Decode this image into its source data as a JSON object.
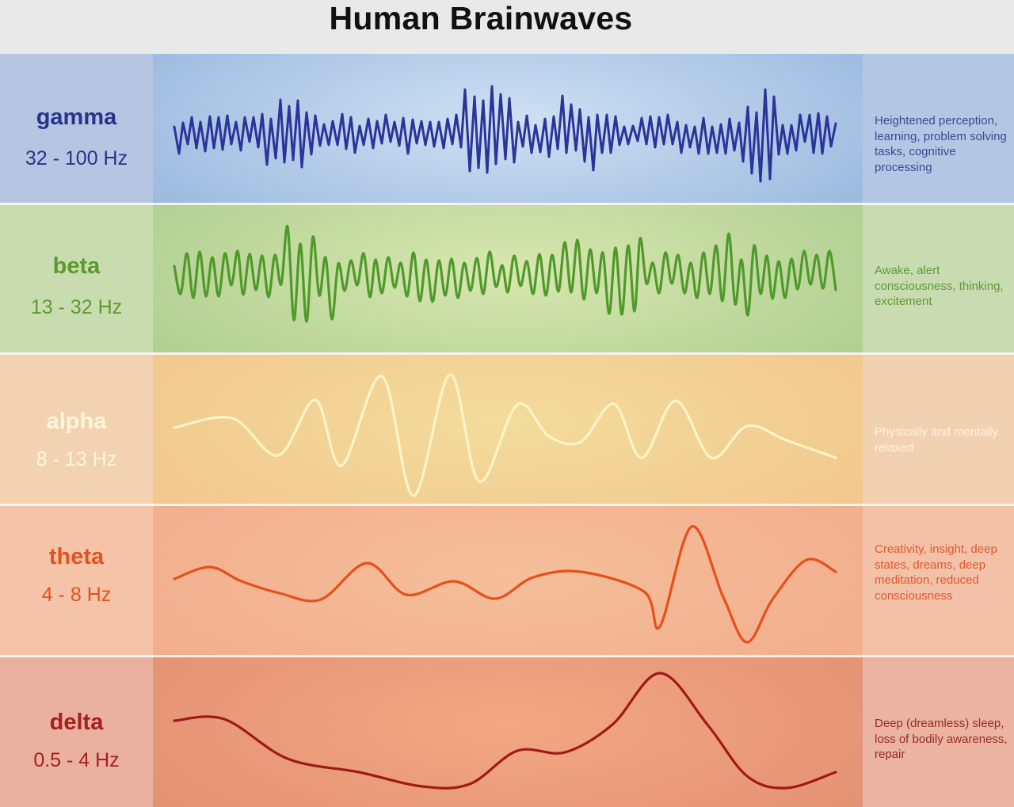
{
  "title": "Human Brainwaves",
  "bands": [
    {
      "name": "gamma",
      "range": "32 - 100 Hz",
      "description": "Heightened perception, learning, problem solving tasks, cognitive processing",
      "colors": {
        "text": "#28338a",
        "wave": "#2b349a",
        "desc": "#3c4a93",
        "left": "#b6c6e2",
        "mid_center": "#cfe1f3",
        "mid_edge": "#8fb0da",
        "right": "#b3c6e3"
      }
    },
    {
      "name": "beta",
      "range": "13 - 32 Hz",
      "description": "Awake, alert consciousness, thinking, excitement",
      "colors": {
        "text": "#5c9a2f",
        "wave": "#4f9a2a",
        "desc": "#5f9a34",
        "left": "#c8dcb0",
        "mid_center": "#d8e7b0",
        "mid_edge": "#a7c98a",
        "right": "#c9dcb1"
      }
    },
    {
      "name": "alpha",
      "range": "8 - 13 Hz",
      "description": "Physically and mentally relaxed",
      "colors": {
        "text": "#fff6de",
        "wave": "#fdf5c8",
        "desc": "#fdf3dc",
        "left": "#f2d2b0",
        "mid_center": "#f3dc9c",
        "mid_edge": "#f2c28a",
        "right": "#f2d1b1"
      }
    },
    {
      "name": "theta",
      "range": "4 - 8 Hz",
      "description": "Creativity, insight, deep states, dreams, deep meditation, reduced consciousness",
      "colors": {
        "text": "#e2531f",
        "wave": "#e74f1b",
        "desc": "#e05a2c",
        "left": "#f4c3a8",
        "mid_center": "#f5bf9a",
        "mid_edge": "#f1a98a",
        "right": "#f3c1a8"
      }
    },
    {
      "name": "delta",
      "range": "0.5 - 4 Hz",
      "description": "Deep (dreamless) sleep, loss of bodily awareness, repair",
      "colors": {
        "text": "#a81f1e",
        "wave": "#a11818",
        "desc": "#9a2a25",
        "left": "#eab1a0",
        "mid_center": "#f2a882",
        "mid_edge": "#e18c71",
        "right": "#ebb3a2"
      }
    }
  ]
}
